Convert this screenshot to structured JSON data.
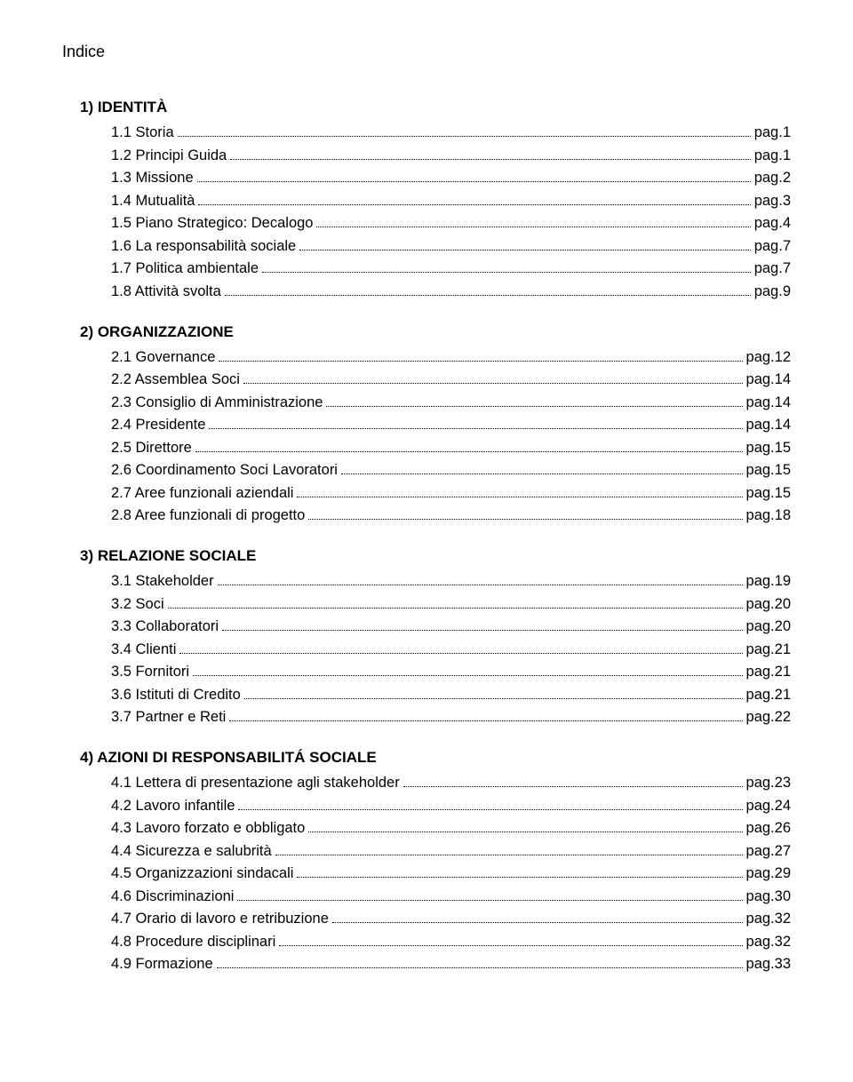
{
  "title": "Indice",
  "sections": [
    {
      "heading": "1) IDENTITÀ",
      "items": [
        {
          "label": "1.1 Storia",
          "page": "pag.1"
        },
        {
          "label": "1.2 Principi Guida",
          "page": "pag.1"
        },
        {
          "label": "1.3 Missione",
          "page": "pag.2"
        },
        {
          "label": "1.4 Mutualità",
          "page": "pag.3"
        },
        {
          "label": "1.5 Piano Strategico: Decalogo",
          "page": "pag.4"
        },
        {
          "label": "1.6 La responsabilità sociale",
          "page": "pag.7"
        },
        {
          "label": "1.7 Politica ambientale",
          "page": "pag.7"
        },
        {
          "label": "1.8 Attività svolta",
          "page": "pag.9"
        }
      ]
    },
    {
      "heading": "2) ORGANIZZAZIONE",
      "items": [
        {
          "label": "2.1 Governance",
          "page": "pag.12"
        },
        {
          "label": "2.2 Assemblea Soci",
          "page": "pag.14"
        },
        {
          "label": "2.3 Consiglio di Amministrazione",
          "page": "pag.14"
        },
        {
          "label": "2.4 Presidente",
          "page": "pag.14"
        },
        {
          "label": "2.5 Direttore",
          "page": "pag.15"
        },
        {
          "label": "2.6 Coordinamento Soci Lavoratori",
          "page": "pag.15"
        },
        {
          "label": "2.7 Aree funzionali aziendali",
          "page": "pag.15"
        },
        {
          "label": "2.8 Aree funzionali di progetto",
          "page": "pag.18"
        }
      ]
    },
    {
      "heading": "3) RELAZIONE SOCIALE",
      "items": [
        {
          "label": "3.1 Stakeholder",
          "page": "pag.19"
        },
        {
          "label": "3.2 Soci",
          "page": "pag.20"
        },
        {
          "label": "3.3 Collaboratori",
          "page": "pag.20"
        },
        {
          "label": "3.4 Clienti",
          "page": "pag.21"
        },
        {
          "label": "3.5 Fornitori",
          "page": "pag.21"
        },
        {
          "label": "3.6 Istituti di Credito",
          "page": "pag.21"
        },
        {
          "label": "3.7 Partner e Reti",
          "page": "pag.22"
        }
      ]
    },
    {
      "heading": "4) AZIONI DI RESPONSABILITÁ SOCIALE",
      "items": [
        {
          "label": "4.1 Lettera di presentazione agli stakeholder",
          "page": "pag.23"
        },
        {
          "label": "4.2 Lavoro infantile",
          "page": "pag.24"
        },
        {
          "label": "4.3 Lavoro forzato e obbligato",
          "page": "pag.26"
        },
        {
          "label": "4.4 Sicurezza e salubrità",
          "page": "pag.27"
        },
        {
          "label": "4.5 Organizzazioni sindacali",
          "page": "pag.29"
        },
        {
          "label": "4.6 Discriminazioni",
          "page": "pag.30"
        },
        {
          "label": "4.7 Orario di lavoro e retribuzione",
          "page": "pag.32"
        },
        {
          "label": "4.8 Procedure disciplinari",
          "page": "pag.32"
        },
        {
          "label": "4.9 Formazione",
          "page": "pag.33"
        }
      ]
    }
  ],
  "colors": {
    "text": "#000000",
    "background": "#ffffff"
  },
  "typography": {
    "font_family": "Arial",
    "title_fontsize_pt": 14,
    "heading_fontsize_pt": 13,
    "body_fontsize_pt": 12.5,
    "heading_weight": "bold"
  }
}
